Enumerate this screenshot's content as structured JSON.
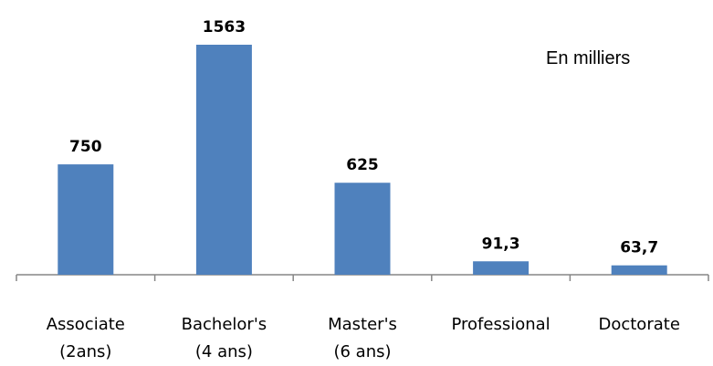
{
  "chart_data": {
    "type": "bar",
    "unit_note": "En milliers",
    "categories": [
      [
        "Associate",
        "(2ans)"
      ],
      [
        "Bachelor's",
        "(4 ans)"
      ],
      [
        "Master's",
        "(6 ans)"
      ],
      [
        "Professional"
      ],
      [
        "Doctorate"
      ]
    ],
    "values": [
      750,
      1563,
      625,
      91.3,
      63.7
    ],
    "value_labels": [
      "750",
      "1563",
      "625",
      "91,3",
      "63,7"
    ],
    "ylim": [
      0,
      1620
    ],
    "grid": false,
    "legend": "none",
    "colors": {
      "bar": "#4f81bd",
      "axis": "#868686",
      "text": "#000000"
    }
  }
}
